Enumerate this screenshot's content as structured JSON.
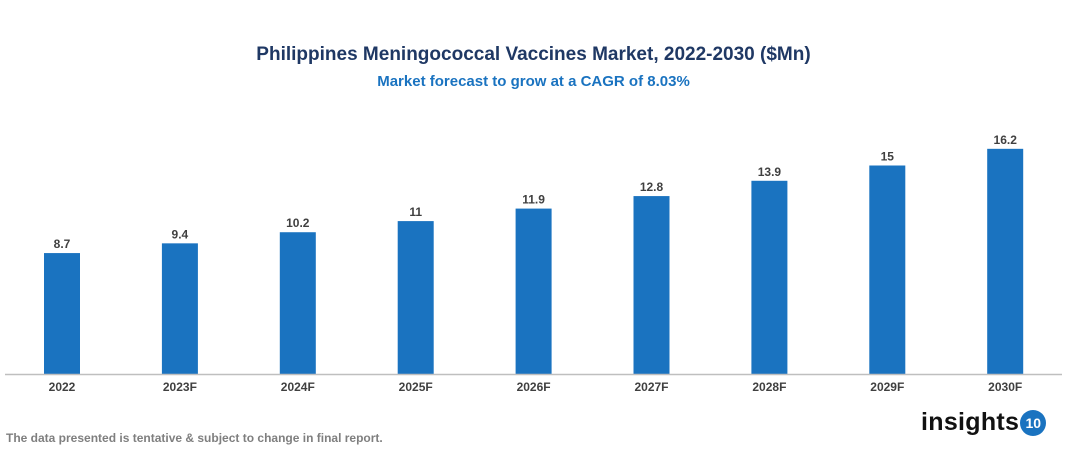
{
  "chart_data": {
    "type": "bar",
    "title": "Philippines Meningococcal Vaccines Market, 2022-2030 ($Mn)",
    "subtitle": "Market forecast to grow at a CAGR of 8.03%",
    "categories": [
      "2022",
      "2023F",
      "2024F",
      "2025F",
      "2026F",
      "2027F",
      "2028F",
      "2029F",
      "2030F"
    ],
    "values": [
      8.7,
      9.4,
      10.2,
      11,
      11.9,
      12.8,
      13.9,
      15,
      16.2
    ],
    "ylim": [
      0,
      17
    ],
    "grid": false,
    "legend": "none",
    "bar_color": "#1a73c0"
  },
  "footer": {
    "note": "The data presented is tentative & subject to change in final report.",
    "logo_text": "insights",
    "logo_badge": "10"
  }
}
